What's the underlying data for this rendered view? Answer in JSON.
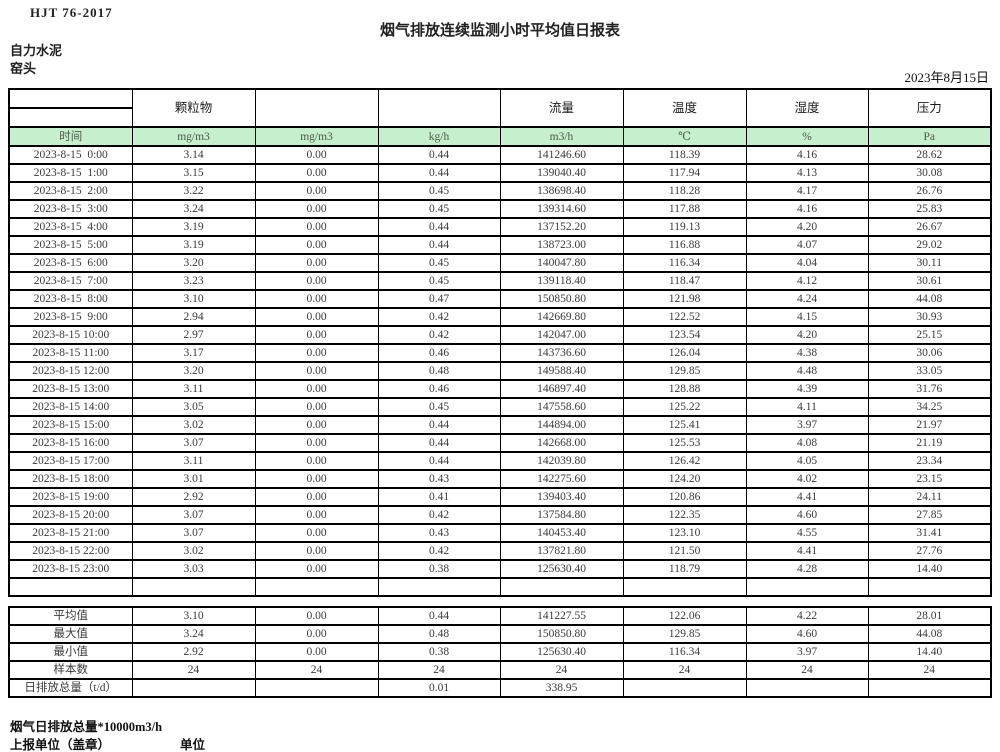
{
  "meta": {
    "standard_code": "HJT  76-2017",
    "title": "烟气排放连续监测小时平均值日报表",
    "company": "自力水泥",
    "station": "窑头",
    "date": "2023年8月15日"
  },
  "colors": {
    "unit_row_bg": "#c6efce",
    "border": "#000000"
  },
  "table": {
    "group_headers": [
      "",
      "颗粒物",
      "",
      "",
      "流量",
      "温度",
      "湿度",
      "压力"
    ],
    "unit_row": [
      "时间",
      "mg/m3",
      "mg/m3",
      "kg/h",
      "m3/h",
      "℃",
      "%",
      "Pa"
    ],
    "rows": [
      [
        "2023-8-15  0:00",
        "3.14",
        "0.00",
        "0.44",
        "141246.60",
        "118.39",
        "4.16",
        "28.62"
      ],
      [
        "2023-8-15  1:00",
        "3.15",
        "0.00",
        "0.44",
        "139040.40",
        "117.94",
        "4.13",
        "30.08"
      ],
      [
        "2023-8-15  2:00",
        "3.22",
        "0.00",
        "0.45",
        "138698.40",
        "118.28",
        "4.17",
        "26.76"
      ],
      [
        "2023-8-15  3:00",
        "3.24",
        "0.00",
        "0.45",
        "139314.60",
        "117.88",
        "4.16",
        "25.83"
      ],
      [
        "2023-8-15  4:00",
        "3.19",
        "0.00",
        "0.44",
        "137152.20",
        "119.13",
        "4.20",
        "26.67"
      ],
      [
        "2023-8-15  5:00",
        "3.19",
        "0.00",
        "0.44",
        "138723.00",
        "116.88",
        "4.07",
        "29.02"
      ],
      [
        "2023-8-15  6:00",
        "3.20",
        "0.00",
        "0.45",
        "140047.80",
        "116.34",
        "4.04",
        "30.11"
      ],
      [
        "2023-8-15  7:00",
        "3.23",
        "0.00",
        "0.45",
        "139118.40",
        "118.47",
        "4.12",
        "30.61"
      ],
      [
        "2023-8-15  8:00",
        "3.10",
        "0.00",
        "0.47",
        "150850.80",
        "121.98",
        "4.24",
        "44.08"
      ],
      [
        "2023-8-15  9:00",
        "2.94",
        "0.00",
        "0.42",
        "142669.80",
        "122.52",
        "4.15",
        "30.93"
      ],
      [
        "2023-8-15 10:00",
        "2.97",
        "0.00",
        "0.42",
        "142047.00",
        "123.54",
        "4.20",
        "25.15"
      ],
      [
        "2023-8-15 11:00",
        "3.17",
        "0.00",
        "0.46",
        "143736.60",
        "126.04",
        "4.38",
        "30.06"
      ],
      [
        "2023-8-15 12:00",
        "3.20",
        "0.00",
        "0.48",
        "149588.40",
        "129.85",
        "4.48",
        "33.05"
      ],
      [
        "2023-8-15 13:00",
        "3.11",
        "0.00",
        "0.46",
        "146897.40",
        "128.88",
        "4.39",
        "31.76"
      ],
      [
        "2023-8-15 14:00",
        "3.05",
        "0.00",
        "0.45",
        "147558.60",
        "125.22",
        "4.11",
        "34.25"
      ],
      [
        "2023-8-15 15:00",
        "3.02",
        "0.00",
        "0.44",
        "144894.00",
        "125.41",
        "3.97",
        "21.97"
      ],
      [
        "2023-8-15 16:00",
        "3.07",
        "0.00",
        "0.44",
        "142668.00",
        "125.53",
        "4.08",
        "21.19"
      ],
      [
        "2023-8-15 17:00",
        "3.11",
        "0.00",
        "0.44",
        "142039.80",
        "126.42",
        "4.05",
        "23.34"
      ],
      [
        "2023-8-15 18:00",
        "3.01",
        "0.00",
        "0.43",
        "142275.60",
        "124.20",
        "4.02",
        "23.15"
      ],
      [
        "2023-8-15 19:00",
        "2.92",
        "0.00",
        "0.41",
        "139403.40",
        "120.86",
        "4.41",
        "24.11"
      ],
      [
        "2023-8-15 20:00",
        "3.07",
        "0.00",
        "0.42",
        "137584.80",
        "122.35",
        "4.60",
        "27.85"
      ],
      [
        "2023-8-15 21:00",
        "3.07",
        "0.00",
        "0.43",
        "140453.40",
        "123.10",
        "4.55",
        "31.41"
      ],
      [
        "2023-8-15 22:00",
        "3.02",
        "0.00",
        "0.42",
        "137821.80",
        "121.50",
        "4.41",
        "27.76"
      ],
      [
        "2023-8-15 23:00",
        "3.03",
        "0.00",
        "0.38",
        "125630.40",
        "118.79",
        "4.28",
        "14.40"
      ],
      [
        "",
        "",
        "",
        "",
        "",
        "",
        "",
        ""
      ]
    ],
    "summary": [
      [
        "平均值",
        "3.10",
        "0.00",
        "0.44",
        "141227.55",
        "122.06",
        "4.22",
        "28.01"
      ],
      [
        "最大值",
        "3.24",
        "0.00",
        "0.48",
        "150850.80",
        "129.85",
        "4.60",
        "44.08"
      ],
      [
        "最小值",
        "2.92",
        "0.00",
        "0.38",
        "125630.40",
        "116.34",
        "3.97",
        "14.40"
      ],
      [
        "样本数",
        "24",
        "24",
        "24",
        "24",
        "24",
        "24",
        "24"
      ],
      [
        "日排放总量（t/d）",
        "",
        "",
        "0.01",
        "338.95",
        "",
        "",
        ""
      ]
    ]
  },
  "footer": {
    "note": "烟气日排放总量*10000m3/h",
    "report_org_label": "上报单位（盖章）",
    "unit_label": "单位"
  }
}
